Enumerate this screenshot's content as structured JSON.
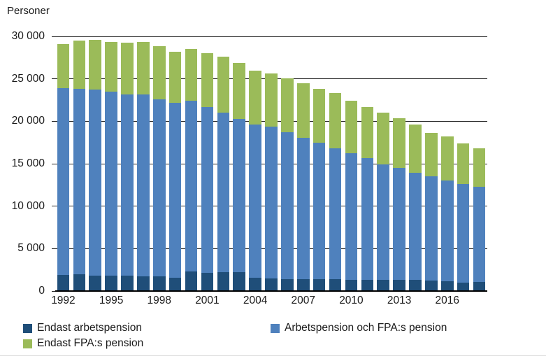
{
  "page": {
    "title_label": "Personer"
  },
  "colors": {
    "series_dark_blue": "#1F4E79",
    "series_mid_blue": "#4F81BD",
    "series_green": "#9BBB59",
    "gridline": "#262626",
    "axis_line": "#000000",
    "text": "#1a1a1a",
    "bottom_rule": "#d9d9d9",
    "background": "#ffffff"
  },
  "legend": {
    "items": [
      {
        "label": "Endast arbetspension",
        "color": "#1F4E79"
      },
      {
        "label": "Arbetspension och FPA:s pension",
        "color": "#4F81BD"
      },
      {
        "label": "Endast FPA:s pension",
        "color": "#9BBB59"
      }
    ]
  },
  "chart_data": {
    "type": "bar",
    "stacked": true,
    "title": "",
    "ylabel": "Personer",
    "xlabel": "",
    "ylim": [
      0,
      30000
    ],
    "ytick_interval": 5000,
    "ytick_labels": [
      "0",
      "5 000",
      "10 000",
      "15 000",
      "20 000",
      "25 000",
      "30 000"
    ],
    "grid": true,
    "legend_position": "bottom",
    "x": [
      1992,
      1993,
      1994,
      1995,
      1996,
      1997,
      1998,
      1999,
      2000,
      2001,
      2002,
      2003,
      2004,
      2005,
      2006,
      2007,
      2008,
      2009,
      2010,
      2011,
      2012,
      2013,
      2014,
      2015,
      2016,
      2017,
      2018
    ],
    "xtick_labels": [
      "1992",
      "1995",
      "1998",
      "2001",
      "2004",
      "2007",
      "2010",
      "2013",
      "2016"
    ],
    "series": [
      {
        "name": "Endast arbetspension",
        "color": "#1F4E79",
        "values": [
          1900,
          1950,
          1800,
          1850,
          1850,
          1750,
          1700,
          1600,
          2300,
          2150,
          2200,
          2200,
          1550,
          1500,
          1400,
          1400,
          1400,
          1400,
          1300,
          1300,
          1300,
          1300,
          1300,
          1250,
          1150,
          1000,
          1050
        ]
      },
      {
        "name": "Arbetspension och FPA:s pension",
        "color": "#4F81BD",
        "values": [
          22000,
          21900,
          21900,
          21600,
          21350,
          21400,
          20900,
          20550,
          20150,
          19550,
          18800,
          18050,
          18050,
          17850,
          17350,
          16650,
          16100,
          15450,
          14900,
          14350,
          13600,
          13200,
          12600,
          12250,
          11900,
          11600,
          11250
        ]
      },
      {
        "name": "Endast FPA:s pension",
        "color": "#9BBB59",
        "values": [
          5200,
          5650,
          5900,
          5900,
          6050,
          6200,
          6250,
          6000,
          6050,
          6300,
          6600,
          6600,
          6350,
          6300,
          6300,
          6400,
          6300,
          6500,
          6200,
          6050,
          6150,
          5850,
          5700,
          5150,
          5150,
          4800,
          4550
        ]
      }
    ]
  }
}
